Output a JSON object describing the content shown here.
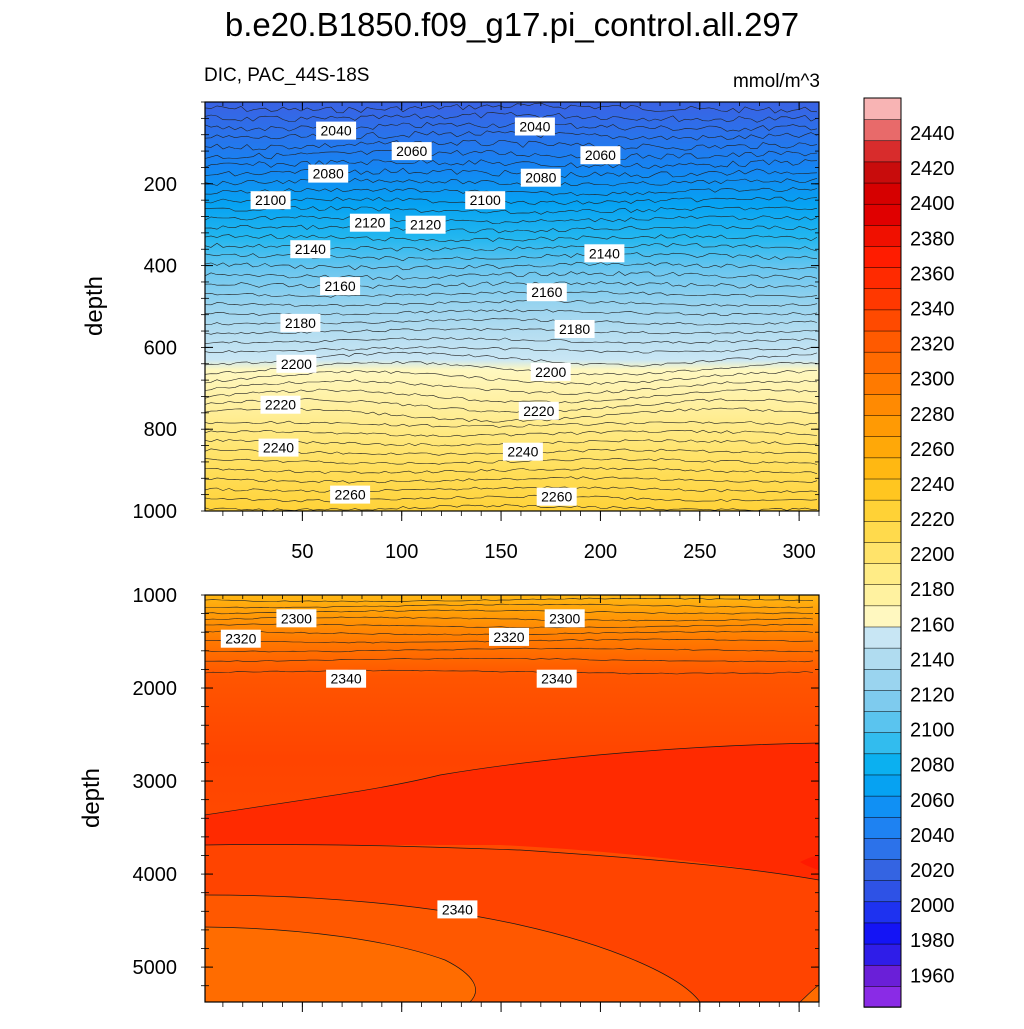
{
  "chart_data": {
    "type": "contour",
    "title": "b.e20.B1850.f09_g17.pi_control.all.297",
    "left_subtitle": "DIC, PAC_44S-18S",
    "right_subtitle": "mmol/m^3",
    "x_range": [
      1,
      310
    ],
    "x_ticks": [
      50,
      100,
      150,
      200,
      250,
      300
    ],
    "upper_panel": {
      "ylabel": "depth",
      "y_range": [
        0,
        1000
      ],
      "y_ticks": [
        200,
        400,
        600,
        800,
        1000
      ],
      "contour_labels": [
        {
          "text": "2040",
          "x": 67,
          "y": 70
        },
        {
          "text": "2040",
          "x": 167,
          "y": 60
        },
        {
          "text": "2060",
          "x": 105,
          "y": 120
        },
        {
          "text": "2060",
          "x": 200,
          "y": 130
        },
        {
          "text": "2080",
          "x": 63,
          "y": 175
        },
        {
          "text": "2080",
          "x": 170,
          "y": 185
        },
        {
          "text": "2100",
          "x": 34,
          "y": 240
        },
        {
          "text": "2100",
          "x": 142,
          "y": 240
        },
        {
          "text": "2120",
          "x": 84,
          "y": 295
        },
        {
          "text": "2120",
          "x": 112,
          "y": 300
        },
        {
          "text": "2140",
          "x": 54,
          "y": 360
        },
        {
          "text": "2140",
          "x": 202,
          "y": 370
        },
        {
          "text": "2160",
          "x": 69,
          "y": 450
        },
        {
          "text": "2160",
          "x": 173,
          "y": 465
        },
        {
          "text": "2180",
          "x": 49,
          "y": 540
        },
        {
          "text": "2180",
          "x": 187,
          "y": 555
        },
        {
          "text": "2200",
          "x": 47,
          "y": 640
        },
        {
          "text": "2200",
          "x": 175,
          "y": 660
        },
        {
          "text": "2220",
          "x": 39,
          "y": 740
        },
        {
          "text": "2220",
          "x": 169,
          "y": 755
        },
        {
          "text": "2240",
          "x": 38,
          "y": 845
        },
        {
          "text": "2240",
          "x": 161,
          "y": 855
        },
        {
          "text": "2260",
          "x": 74,
          "y": 960
        },
        {
          "text": "2260",
          "x": 178,
          "y": 965
        }
      ]
    },
    "lower_panel": {
      "ylabel": "depth",
      "y_range": [
        1000,
        5375
      ],
      "y_ticks": [
        1000,
        2000,
        3000,
        4000,
        5000
      ],
      "contour_labels": [
        {
          "text": "2300",
          "x": 47,
          "y": 1250
        },
        {
          "text": "2300",
          "x": 182,
          "y": 1250
        },
        {
          "text": "2320",
          "x": 19,
          "y": 1470
        },
        {
          "text": "2320",
          "x": 154,
          "y": 1450
        },
        {
          "text": "2340",
          "x": 72,
          "y": 1900
        },
        {
          "text": "2340",
          "x": 178,
          "y": 1900
        },
        {
          "text": "2340",
          "x": 128,
          "y": 4380
        }
      ]
    },
    "colorbar": {
      "levels": [
        1960,
        1980,
        2000,
        2020,
        2040,
        2060,
        2080,
        2100,
        2120,
        2140,
        2160,
        2180,
        2200,
        2220,
        2240,
        2260,
        2280,
        2300,
        2320,
        2340,
        2360,
        2380,
        2400,
        2420,
        2440
      ],
      "tick_labels": [
        "1960",
        "1980",
        "2000",
        "2020",
        "2040",
        "2060",
        "2080",
        "2100",
        "2120",
        "2140",
        "2160",
        "2180",
        "2200",
        "2220",
        "2240",
        "2260",
        "2280",
        "2300",
        "2320",
        "2340",
        "2360",
        "2380",
        "2400",
        "2420",
        "2440"
      ],
      "colors": [
        "#8a2be6",
        "#6a1fd8",
        "#2f1de8",
        "#1414f5",
        "#1e32f0",
        "#2e52e6",
        "#3464e2",
        "#2c72ea",
        "#1e82f2",
        "#1090f4",
        "#06a2f2",
        "#0bb0f0",
        "#32bcee",
        "#5ac4ef",
        "#7ecbee",
        "#9ad4ef",
        "#b0dcf0",
        "#c8e6f4",
        "#fff8c0",
        "#fff2a0",
        "#ffec86",
        "#ffe36a",
        "#ffda4c",
        "#ffd236",
        "#ffc620",
        "#ffb812",
        "#ffa808",
        "#ff9a04",
        "#ff8a02",
        "#ff7a00",
        "#ff6a00",
        "#ff5a00",
        "#ff4a00",
        "#ff3800",
        "#ff2a00",
        "#ff1c00",
        "#f01000",
        "#e00000",
        "#d60000",
        "#c80c0c",
        "#d82c2c",
        "#e86a6a",
        "#f8b4b4"
      ]
    }
  }
}
